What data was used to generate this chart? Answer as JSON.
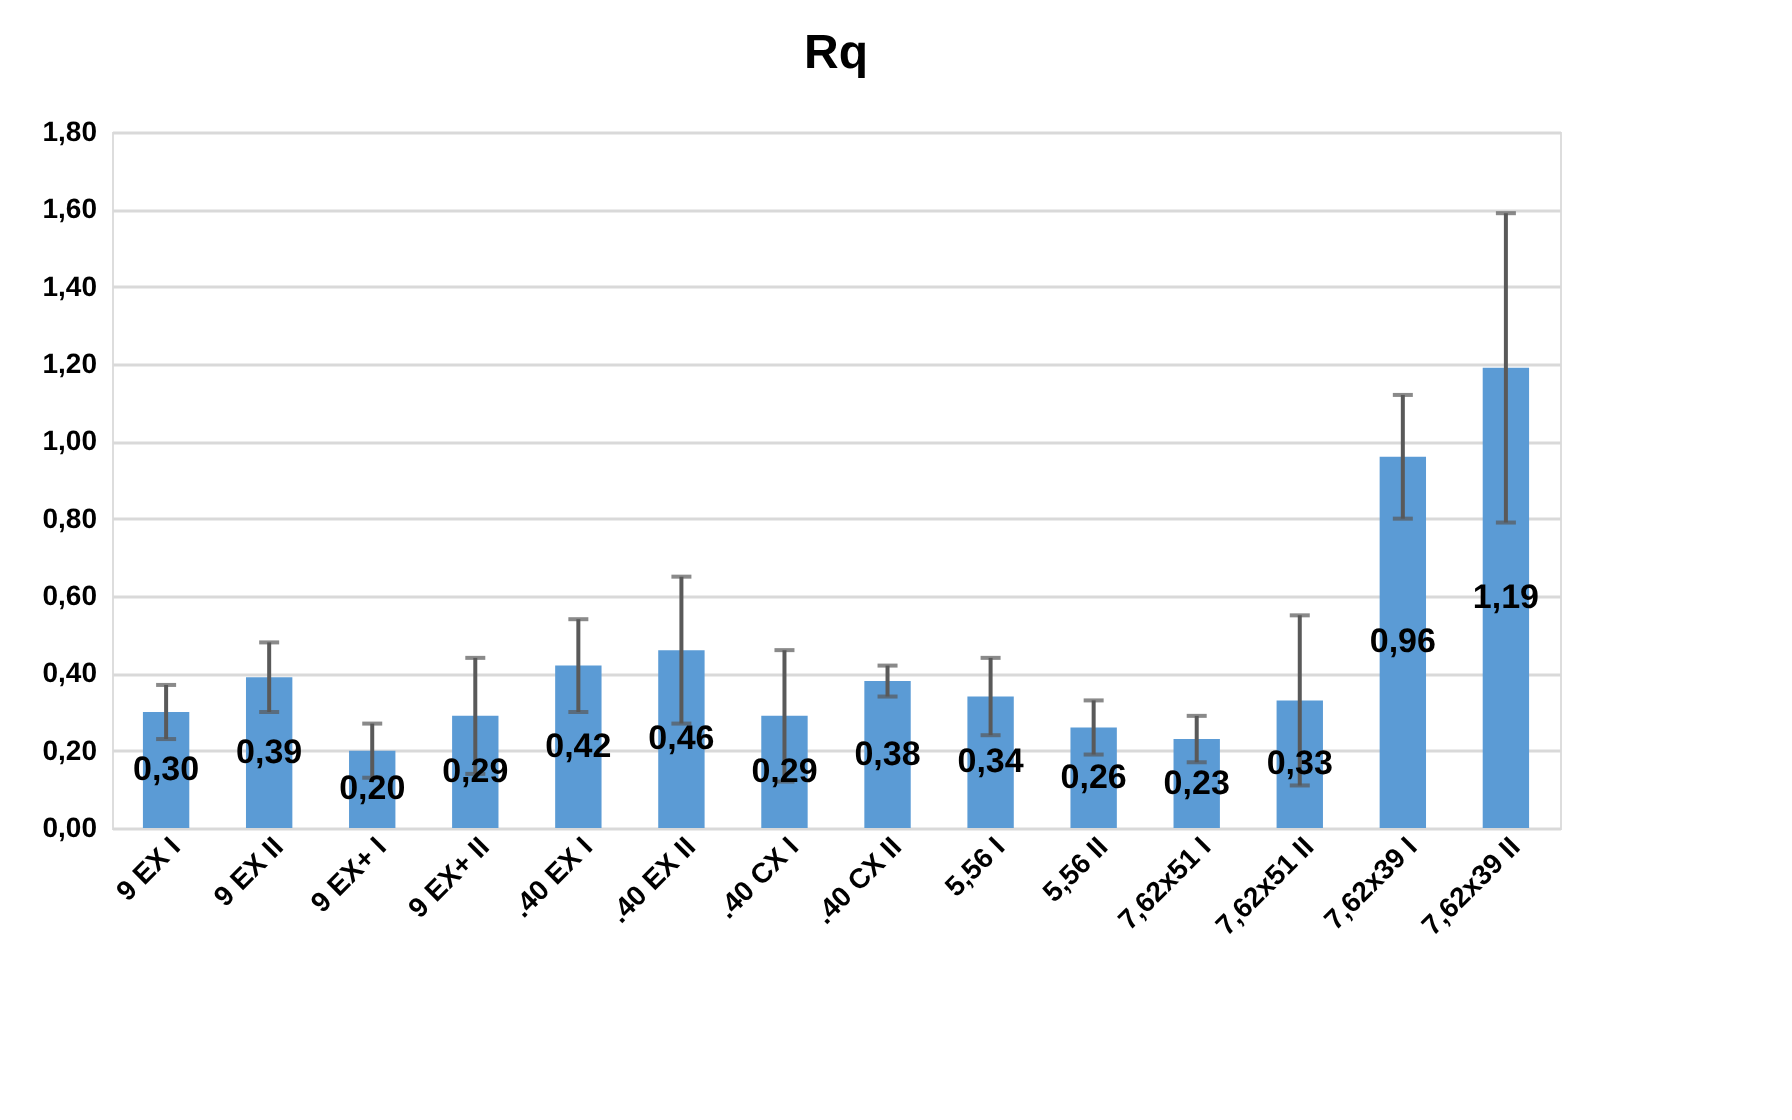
{
  "chart_data": {
    "type": "bar",
    "title": "Rq",
    "categories": [
      "9 EX I",
      "9 EX II",
      "9 EX+ I",
      "9 EX+ II",
      ".40 EX I",
      ".40 EX II",
      ".40 CX I",
      ".40 CX II",
      "5,56 I",
      "5,56 II",
      "7,62x51 I",
      "7,62x51 II",
      "7,62x39 I",
      "7,62x39 II"
    ],
    "values": [
      0.3,
      0.39,
      0.2,
      0.29,
      0.42,
      0.46,
      0.29,
      0.38,
      0.34,
      0.26,
      0.23,
      0.33,
      0.96,
      1.19
    ],
    "errors": [
      0.07,
      0.09,
      0.07,
      0.15,
      0.12,
      0.19,
      0.17,
      0.04,
      0.1,
      0.07,
      0.06,
      0.22,
      0.16,
      0.4
    ],
    "color": "#5b9bd5",
    "ylim": [
      0,
      1.8
    ],
    "yticks": [
      {
        "value": 0,
        "label": "0,00"
      },
      {
        "value": 0.2,
        "label": "0,20"
      },
      {
        "value": 0.4,
        "label": "0,40"
      },
      {
        "value": 0.6,
        "label": "0,60"
      },
      {
        "value": 0.8,
        "label": "0,80"
      },
      {
        "value": 1.0,
        "label": "1,00"
      },
      {
        "value": 1.2,
        "label": "1,20"
      },
      {
        "value": 1.4,
        "label": "1,40"
      },
      {
        "value": 1.6,
        "label": "1,60"
      },
      {
        "value": 1.8,
        "label": "1,80"
      }
    ],
    "value_labels": [
      "0,30",
      "0,39",
      "0,20",
      "0,29",
      "0,42",
      "0,46",
      "0,29",
      "0,38",
      "0,34",
      "0,26",
      "0,23",
      "0,33",
      "0,96",
      "1,19"
    ],
    "grid": "y"
  }
}
